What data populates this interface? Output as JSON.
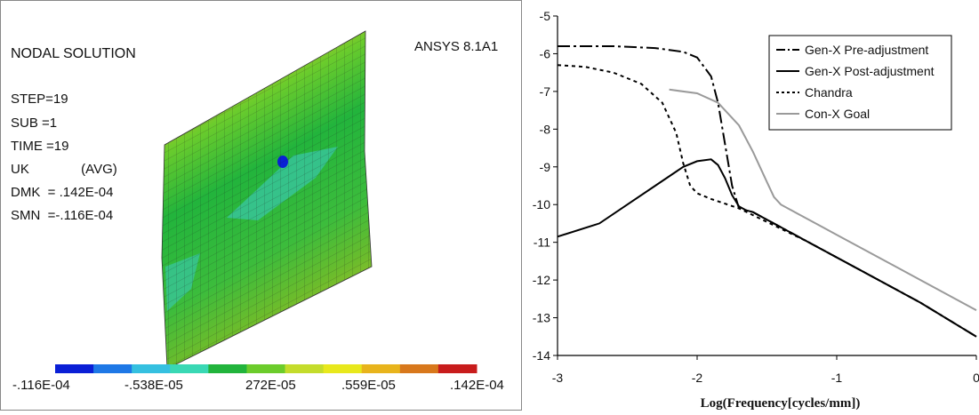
{
  "left_panel": {
    "title": "NODAL SOLUTION",
    "software": "ANSYS 8.1A1",
    "info": [
      "STEP=19",
      "SUB =1",
      "TIME =19",
      "UK              (AVG)",
      "DMK  = .142E-04",
      "SMN  =-.116E-04"
    ],
    "color_scale": [
      "#0a1fd6",
      "#1e78e6",
      "#35c0e0",
      "#39d8b4",
      "#22b43c",
      "#6ccc2c",
      "#c4dc2c",
      "#e8e81c",
      "#e8b41c",
      "#d8781c",
      "#c81c1c"
    ],
    "scale_labels": [
      "-.116E-04",
      "-.538E-05",
      "272E-05",
      ".559E-05",
      ".142E-04"
    ]
  },
  "chart_data": {
    "type": "line",
    "title": "",
    "xlabel": "Log(Frequency[cycles/mm])",
    "ylabel": "",
    "xlim": [
      -3,
      0
    ],
    "ylim": [
      -14,
      -5
    ],
    "x_ticks": [
      "-3",
      "-2",
      "-1",
      "0"
    ],
    "y_ticks": [
      "-5",
      "-6",
      "-7",
      "-8",
      "-9",
      "-10",
      "-11",
      "-12",
      "-13",
      "-14"
    ],
    "legend_position": "top-right",
    "series": [
      {
        "name": "Gen-X Pre-adjustment",
        "style": "dashdot",
        "color": "#000000",
        "x": [
          -3,
          -2.6,
          -2.3,
          -2.1,
          -2.0,
          -1.9,
          -1.85,
          -1.8,
          -1.75,
          -1.7,
          -1.6,
          -1.2,
          -0.8,
          -0.4,
          0
        ],
        "y": [
          -5.8,
          -5.8,
          -5.85,
          -5.95,
          -6.1,
          -6.6,
          -7.3,
          -8.4,
          -9.5,
          -10.1,
          -10.2,
          -11.0,
          -11.8,
          -12.6,
          -13.5
        ]
      },
      {
        "name": "Gen-X Post-adjustment",
        "style": "solid",
        "color": "#000000",
        "x": [
          -3,
          -2.7,
          -2.5,
          -2.3,
          -2.1,
          -2.0,
          -1.9,
          -1.85,
          -1.8,
          -1.75,
          -1.7,
          -1.65,
          -1.6,
          -1.2,
          -0.8,
          -0.4,
          0
        ],
        "y": [
          -10.85,
          -10.5,
          -10.0,
          -9.5,
          -9.0,
          -8.85,
          -8.8,
          -8.95,
          -9.3,
          -9.75,
          -10.05,
          -10.15,
          -10.2,
          -11.0,
          -11.8,
          -12.6,
          -13.5
        ]
      },
      {
        "name": "Chandra",
        "style": "dotted",
        "color": "#000000",
        "x": [
          -3,
          -2.8,
          -2.6,
          -2.4,
          -2.25,
          -2.15,
          -2.1,
          -2.05,
          -2.0,
          -1.9,
          -1.7,
          -1.2,
          -0.8,
          -0.4,
          0
        ],
        "y": [
          -6.3,
          -6.35,
          -6.5,
          -6.8,
          -7.3,
          -8.1,
          -8.9,
          -9.5,
          -9.7,
          -9.85,
          -10.1,
          -11.0,
          -11.8,
          -12.6,
          -13.5
        ]
      },
      {
        "name": "Con-X Goal",
        "style": "solid",
        "color": "#9a9a9a",
        "x": [
          -2.2,
          -2.0,
          -1.85,
          -1.7,
          -1.6,
          -1.5,
          -1.45,
          -1.4,
          -1.3,
          -1.0,
          -0.5,
          0
        ],
        "y": [
          -6.95,
          -7.05,
          -7.3,
          -7.9,
          -8.6,
          -9.4,
          -9.8,
          -10.0,
          -10.2,
          -10.8,
          -11.8,
          -12.8
        ]
      }
    ]
  }
}
